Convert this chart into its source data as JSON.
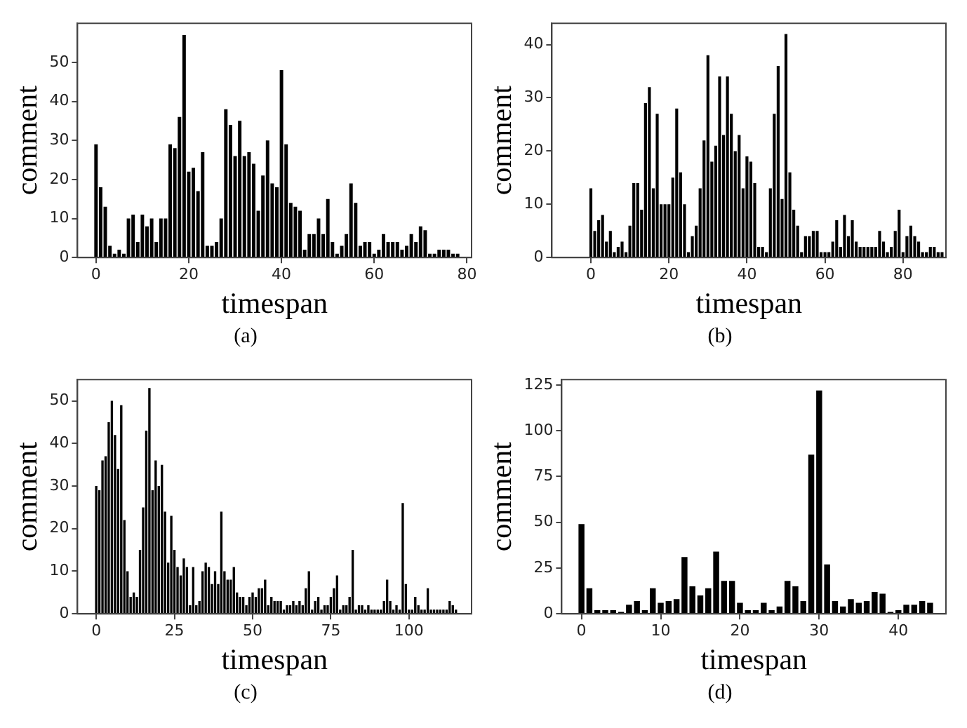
{
  "chart_data": [
    {
      "type": "bar",
      "xlabel": "timespan",
      "ylabel": "comment",
      "color": "#000000",
      "annotations": [
        "(a)"
      ],
      "xlim": [
        -4,
        81
      ],
      "xticks": [
        0,
        20,
        40,
        60,
        80
      ],
      "ylim": [
        0,
        60
      ],
      "yticks": [
        0,
        10,
        20,
        30,
        40,
        50
      ],
      "x": [
        0,
        1,
        2,
        3,
        4,
        5,
        6,
        7,
        8,
        9,
        10,
        11,
        12,
        13,
        14,
        15,
        16,
        17,
        18,
        19,
        20,
        21,
        22,
        23,
        24,
        25,
        26,
        27,
        28,
        29,
        30,
        31,
        32,
        33,
        34,
        35,
        36,
        37,
        38,
        39,
        40,
        41,
        42,
        43,
        44,
        45,
        46,
        47,
        48,
        49,
        50,
        51,
        52,
        53,
        54,
        55,
        56,
        57,
        58,
        59,
        60,
        61,
        62,
        63,
        64,
        65,
        66,
        67,
        68,
        69,
        70,
        71,
        72,
        73,
        74,
        75,
        76,
        77,
        78
      ],
      "values": [
        29,
        18,
        13,
        3,
        1,
        2,
        1,
        10,
        11,
        4,
        11,
        8,
        10,
        4,
        10,
        10,
        29,
        28,
        36,
        57,
        22,
        23,
        17,
        27,
        3,
        3,
        4,
        10,
        38,
        34,
        26,
        35,
        26,
        27,
        24,
        12,
        21,
        30,
        19,
        18,
        48,
        29,
        14,
        13,
        12,
        2,
        6,
        6,
        10,
        6,
        15,
        4,
        1,
        3,
        6,
        19,
        14,
        3,
        4,
        4,
        1,
        2,
        6,
        4,
        4,
        4,
        2,
        3,
        6,
        4,
        8,
        7,
        1,
        1,
        2,
        2,
        2,
        1,
        1
      ]
    },
    {
      "type": "bar",
      "xlabel": "timespan",
      "ylabel": "comment",
      "color": "#000000",
      "annotations": [
        "(b)"
      ],
      "xlim": [
        -10,
        91
      ],
      "xticks": [
        0,
        20,
        40,
        60,
        80
      ],
      "ylim": [
        0,
        44
      ],
      "yticks": [
        0,
        10,
        20,
        30,
        40
      ],
      "x": [
        0,
        1,
        2,
        3,
        4,
        5,
        6,
        7,
        8,
        9,
        10,
        11,
        12,
        13,
        14,
        15,
        16,
        17,
        18,
        19,
        20,
        21,
        22,
        23,
        24,
        25,
        26,
        27,
        28,
        29,
        30,
        31,
        32,
        33,
        34,
        35,
        36,
        37,
        38,
        39,
        40,
        41,
        42,
        43,
        44,
        45,
        46,
        47,
        48,
        49,
        50,
        51,
        52,
        53,
        54,
        55,
        56,
        57,
        58,
        59,
        60,
        61,
        62,
        63,
        64,
        65,
        66,
        67,
        68,
        69,
        70,
        71,
        72,
        73,
        74,
        75,
        76,
        77,
        78,
        79,
        80,
        81,
        82,
        83,
        84,
        85,
        86,
        87,
        88,
        89,
        90
      ],
      "values": [
        13,
        5,
        7,
        8,
        3,
        5,
        1,
        2,
        3,
        1,
        6,
        14,
        14,
        9,
        29,
        32,
        13,
        27,
        10,
        10,
        10,
        15,
        28,
        16,
        10,
        1,
        4,
        6,
        13,
        22,
        38,
        18,
        21,
        34,
        23,
        34,
        27,
        20,
        23,
        13,
        19,
        18,
        14,
        2,
        2,
        1,
        13,
        27,
        36,
        11,
        42,
        16,
        9,
        6,
        1,
        4,
        4,
        5,
        5,
        1,
        1,
        1,
        3,
        7,
        2,
        8,
        4,
        7,
        3,
        2,
        2,
        2,
        2,
        2,
        5,
        3,
        1,
        2,
        5,
        9,
        1,
        4,
        6,
        4,
        3,
        1,
        1,
        2,
        2,
        1,
        1
      ]
    },
    {
      "type": "bar",
      "xlabel": "timespan",
      "ylabel": "comment",
      "color": "#000000",
      "annotations": [
        "(c)"
      ],
      "xlim": [
        -6,
        120
      ],
      "xticks": [
        0,
        25,
        50,
        75,
        100
      ],
      "ylim": [
        0,
        55
      ],
      "yticks": [
        0,
        10,
        20,
        30,
        40,
        50
      ],
      "x": [
        0,
        1,
        2,
        3,
        4,
        5,
        6,
        7,
        8,
        9,
        10,
        11,
        12,
        13,
        14,
        15,
        16,
        17,
        18,
        19,
        20,
        21,
        22,
        23,
        24,
        25,
        26,
        27,
        28,
        29,
        30,
        31,
        32,
        33,
        34,
        35,
        36,
        37,
        38,
        39,
        40,
        41,
        42,
        43,
        44,
        45,
        46,
        47,
        48,
        49,
        50,
        51,
        52,
        53,
        54,
        55,
        56,
        57,
        58,
        59,
        60,
        61,
        62,
        63,
        64,
        65,
        66,
        67,
        68,
        69,
        70,
        71,
        72,
        73,
        74,
        75,
        76,
        77,
        78,
        79,
        80,
        81,
        82,
        83,
        84,
        85,
        86,
        87,
        88,
        89,
        90,
        91,
        92,
        93,
        94,
        95,
        96,
        97,
        98,
        99,
        100,
        101,
        102,
        103,
        104,
        105,
        106,
        107,
        108,
        109,
        110,
        111,
        112,
        113,
        114,
        115
      ],
      "values": [
        30,
        29,
        36,
        37,
        45,
        50,
        42,
        34,
        49,
        22,
        10,
        4,
        5,
        4,
        15,
        25,
        43,
        53,
        29,
        36,
        30,
        35,
        24,
        12,
        23,
        15,
        11,
        9,
        13,
        11,
        2,
        11,
        2,
        3,
        10,
        12,
        11,
        7,
        10,
        7,
        24,
        10,
        8,
        8,
        11,
        5,
        4,
        4,
        2,
        4,
        5,
        4,
        6,
        6,
        8,
        2,
        4,
        3,
        3,
        3,
        1,
        2,
        2,
        3,
        2,
        3,
        2,
        6,
        10,
        1,
        3,
        4,
        1,
        2,
        2,
        4,
        6,
        9,
        1,
        2,
        2,
        4,
        15,
        1,
        2,
        2,
        1,
        2,
        1,
        1,
        1,
        1,
        3,
        8,
        3,
        1,
        2,
        1,
        26,
        7,
        1,
        1,
        4,
        2,
        1,
        1,
        6,
        1,
        1,
        1,
        1,
        1,
        1,
        3,
        2,
        1
      ]
    },
    {
      "type": "bar",
      "xlabel": "timespan",
      "ylabel": "comment",
      "color": "#000000",
      "annotations": [
        "(d)"
      ],
      "xlim": [
        -2.5,
        46
      ],
      "xticks": [
        0,
        10,
        20,
        30,
        40
      ],
      "ylim": [
        0,
        128
      ],
      "yticks": [
        0,
        25,
        50,
        75,
        100,
        125
      ],
      "x": [
        0,
        1,
        2,
        3,
        4,
        5,
        6,
        7,
        8,
        9,
        10,
        11,
        12,
        13,
        14,
        15,
        16,
        17,
        18,
        19,
        20,
        21,
        22,
        23,
        24,
        25,
        26,
        27,
        28,
        29,
        30,
        31,
        32,
        33,
        34,
        35,
        36,
        37,
        38,
        39,
        40,
        41,
        42,
        43,
        44
      ],
      "values": [
        49,
        14,
        2,
        2,
        2,
        1,
        5,
        7,
        2,
        14,
        6,
        7,
        8,
        31,
        15,
        10,
        14,
        34,
        18,
        18,
        6,
        2,
        2,
        6,
        2,
        4,
        18,
        15,
        7,
        87,
        122,
        27,
        7,
        4,
        8,
        6,
        7,
        12,
        11,
        1,
        2,
        5,
        5,
        7,
        6
      ]
    }
  ]
}
